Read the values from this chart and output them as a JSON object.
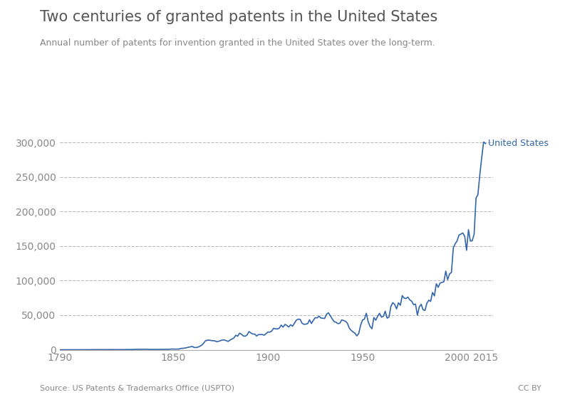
{
  "title": "Two centuries of granted patents in the United States",
  "subtitle": "Annual number of patents for invention granted in the United States over the long-term.",
  "source_text": "Source: US Patents & Trademarks Office (USPTO)",
  "cc_text": "CC BY",
  "series_label": "United States",
  "line_color": "#3366aa",
  "background_color": "#ffffff",
  "title_color": "#555555",
  "subtitle_color": "#888888",
  "label_color": "#3366aa",
  "grid_color": "#bbbbbb",
  "ylim": [
    0,
    320000
  ],
  "yticks": [
    0,
    50000,
    100000,
    150000,
    200000,
    250000,
    300000
  ],
  "xticks": [
    1790,
    1850,
    1900,
    1950,
    2000,
    2015
  ],
  "data": [
    [
      1790,
      3
    ],
    [
      1791,
      33
    ],
    [
      1792,
      11
    ],
    [
      1793,
      20
    ],
    [
      1794,
      22
    ],
    [
      1795,
      12
    ],
    [
      1796,
      19
    ],
    [
      1797,
      51
    ],
    [
      1798,
      28
    ],
    [
      1799,
      44
    ],
    [
      1800,
      41
    ],
    [
      1801,
      44
    ],
    [
      1802,
      65
    ],
    [
      1803,
      97
    ],
    [
      1804,
      84
    ],
    [
      1805,
      57
    ],
    [
      1806,
      63
    ],
    [
      1807,
      99
    ],
    [
      1808,
      158
    ],
    [
      1809,
      203
    ],
    [
      1810,
      223
    ],
    [
      1811,
      215
    ],
    [
      1812,
      238
    ],
    [
      1813,
      181
    ],
    [
      1814,
      210
    ],
    [
      1815,
      173
    ],
    [
      1816,
      247
    ],
    [
      1817,
      294
    ],
    [
      1818,
      222
    ],
    [
      1819,
      156
    ],
    [
      1820,
      155
    ],
    [
      1821,
      168
    ],
    [
      1822,
      200
    ],
    [
      1823,
      173
    ],
    [
      1824,
      228
    ],
    [
      1825,
      304
    ],
    [
      1826,
      323
    ],
    [
      1827,
      331
    ],
    [
      1828,
      368
    ],
    [
      1829,
      447
    ],
    [
      1830,
      544
    ],
    [
      1831,
      573
    ],
    [
      1832,
      474
    ],
    [
      1833,
      586
    ],
    [
      1834,
      630
    ],
    [
      1835,
      752
    ],
    [
      1836,
      702
    ],
    [
      1837,
      426
    ],
    [
      1838,
      514
    ],
    [
      1839,
      425
    ],
    [
      1840,
      473
    ],
    [
      1841,
      495
    ],
    [
      1842,
      488
    ],
    [
      1843,
      531
    ],
    [
      1844,
      502
    ],
    [
      1845,
      502
    ],
    [
      1846,
      619
    ],
    [
      1847,
      572
    ],
    [
      1848,
      660
    ],
    [
      1849,
      1070
    ],
    [
      1850,
      995
    ],
    [
      1851,
      869
    ],
    [
      1852,
      1020
    ],
    [
      1853,
      958
    ],
    [
      1854,
      1902
    ],
    [
      1855,
      2024
    ],
    [
      1856,
      2502
    ],
    [
      1857,
      2910
    ],
    [
      1858,
      3710
    ],
    [
      1859,
      4160
    ],
    [
      1860,
      4778
    ],
    [
      1861,
      3340
    ],
    [
      1862,
      3214
    ],
    [
      1863,
      3773
    ],
    [
      1864,
      5020
    ],
    [
      1865,
      6616
    ],
    [
      1866,
      9450
    ],
    [
      1867,
      12926
    ],
    [
      1868,
      13753
    ],
    [
      1869,
      13986
    ],
    [
      1870,
      13321
    ],
    [
      1871,
      13033
    ],
    [
      1872,
      12780
    ],
    [
      1873,
      11616
    ],
    [
      1874,
      12294
    ],
    [
      1875,
      13291
    ],
    [
      1876,
      14169
    ],
    [
      1877,
      14072
    ],
    [
      1878,
      13052
    ],
    [
      1879,
      12072
    ],
    [
      1880,
      14059
    ],
    [
      1881,
      15558
    ],
    [
      1882,
      17015
    ],
    [
      1883,
      20984
    ],
    [
      1884,
      19570
    ],
    [
      1885,
      24000
    ],
    [
      1886,
      22453
    ],
    [
      1887,
      19996
    ],
    [
      1888,
      19589
    ],
    [
      1889,
      21490
    ],
    [
      1890,
      26292
    ],
    [
      1891,
      24280
    ],
    [
      1892,
      22667
    ],
    [
      1893,
      22751
    ],
    [
      1894,
      19855
    ],
    [
      1895,
      21939
    ],
    [
      1896,
      22023
    ],
    [
      1897,
      22048
    ],
    [
      1898,
      21054
    ],
    [
      1899,
      23277
    ],
    [
      1900,
      25545
    ],
    [
      1901,
      25546
    ],
    [
      1902,
      27119
    ],
    [
      1903,
      31053
    ],
    [
      1904,
      30258
    ],
    [
      1905,
      30097
    ],
    [
      1906,
      31170
    ],
    [
      1907,
      35686
    ],
    [
      1908,
      32713
    ],
    [
      1909,
      36618
    ],
    [
      1910,
      35167
    ],
    [
      1911,
      32856
    ],
    [
      1912,
      36196
    ],
    [
      1913,
      34000
    ],
    [
      1914,
      38491
    ],
    [
      1915,
      42800
    ],
    [
      1916,
      44239
    ],
    [
      1917,
      44047
    ],
    [
      1918,
      38455
    ],
    [
      1919,
      36808
    ],
    [
      1920,
      37060
    ],
    [
      1921,
      37798
    ],
    [
      1922,
      43234
    ],
    [
      1923,
      38009
    ],
    [
      1924,
      42584
    ],
    [
      1925,
      46432
    ],
    [
      1926,
      46189
    ],
    [
      1927,
      48524
    ],
    [
      1928,
      45893
    ],
    [
      1929,
      45685
    ],
    [
      1930,
      45226
    ],
    [
      1931,
      51502
    ],
    [
      1932,
      53480
    ],
    [
      1933,
      48994
    ],
    [
      1934,
      44566
    ],
    [
      1935,
      40640
    ],
    [
      1936,
      39783
    ],
    [
      1937,
      37831
    ],
    [
      1938,
      38274
    ],
    [
      1939,
      43127
    ],
    [
      1940,
      42237
    ],
    [
      1941,
      41146
    ],
    [
      1942,
      38449
    ],
    [
      1943,
      31259
    ],
    [
      1944,
      28062
    ],
    [
      1945,
      25695
    ],
    [
      1946,
      23813
    ],
    [
      1947,
      20051
    ],
    [
      1948,
      23514
    ],
    [
      1949,
      35484
    ],
    [
      1950,
      43040
    ],
    [
      1951,
      44323
    ],
    [
      1952,
      52894
    ],
    [
      1953,
      40475
    ],
    [
      1954,
      33710
    ],
    [
      1955,
      30432
    ],
    [
      1956,
      46679
    ],
    [
      1957,
      42789
    ],
    [
      1958,
      48416
    ],
    [
      1959,
      52745
    ],
    [
      1960,
      47170
    ],
    [
      1961,
      48315
    ],
    [
      1962,
      55772
    ],
    [
      1963,
      45679
    ],
    [
      1964,
      47378
    ],
    [
      1965,
      62857
    ],
    [
      1966,
      68191
    ],
    [
      1967,
      65653
    ],
    [
      1968,
      59102
    ],
    [
      1969,
      67964
    ],
    [
      1970,
      64427
    ],
    [
      1971,
      78317
    ],
    [
      1972,
      74767
    ],
    [
      1973,
      74143
    ],
    [
      1974,
      76199
    ],
    [
      1975,
      72064
    ],
    [
      1976,
      70200
    ],
    [
      1977,
      65269
    ],
    [
      1978,
      66102
    ],
    [
      1979,
      49980
    ],
    [
      1980,
      61819
    ],
    [
      1981,
      65771
    ],
    [
      1982,
      57888
    ],
    [
      1983,
      56860
    ],
    [
      1984,
      67200
    ],
    [
      1985,
      71661
    ],
    [
      1986,
      70001
    ],
    [
      1987,
      82924
    ],
    [
      1988,
      77924
    ],
    [
      1989,
      95537
    ],
    [
      1990,
      90360
    ],
    [
      1991,
      96512
    ],
    [
      1992,
      97443
    ],
    [
      1993,
      98342
    ],
    [
      1994,
      113834
    ],
    [
      1995,
      101419
    ],
    [
      1996,
      109645
    ],
    [
      1997,
      111984
    ],
    [
      1998,
      147520
    ],
    [
      1999,
      153488
    ],
    [
      2000,
      157494
    ],
    [
      2001,
      166038
    ],
    [
      2002,
      167331
    ],
    [
      2003,
      169023
    ],
    [
      2004,
      164293
    ],
    [
      2005,
      143806
    ],
    [
      2006,
      173771
    ],
    [
      2007,
      157282
    ],
    [
      2008,
      157772
    ],
    [
      2009,
      167349
    ],
    [
      2010,
      219614
    ],
    [
      2011,
      224505
    ],
    [
      2012,
      253155
    ],
    [
      2013,
      277835
    ],
    [
      2014,
      300678
    ],
    [
      2015,
      298407
    ]
  ]
}
